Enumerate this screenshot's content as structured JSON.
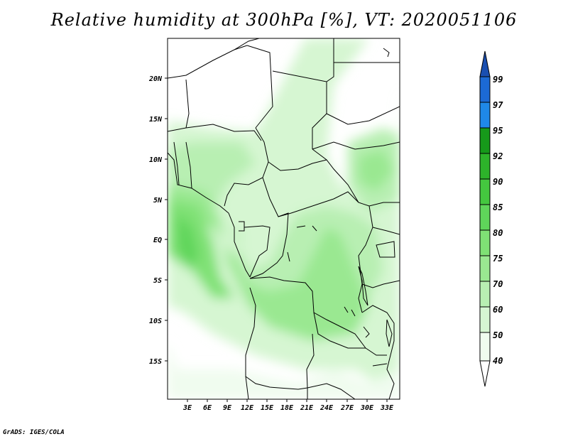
{
  "title": "Relative humidity at 300hPa [%], VT: 2020051106",
  "credit": "GrADS: IGES/COLA",
  "colors": {
    "rh40": "#f0fcef",
    "rh50": "#d6f6d2",
    "rh60": "#b8efb2",
    "rh70": "#9ae891",
    "rh75": "#7fe175",
    "rh80": "#5fd55a",
    "rh85": "#44c73f",
    "rh90": "#2db32a",
    "rh92": "#16991a",
    "rh95": "#1f88e8",
    "rh97": "#1c6ad4",
    "rh99": "#1a4fb0"
  },
  "map": {
    "lat_labels": [
      "20N",
      "15N",
      "10N",
      "5N",
      "EQ",
      "5S",
      "10S",
      "15S"
    ],
    "lon_labels": [
      "3E",
      "6E",
      "9E",
      "12E",
      "15E",
      "18E",
      "21E",
      "24E",
      "27E",
      "30E",
      "33E"
    ]
  },
  "colorbar": {
    "labels": [
      "40",
      "50",
      "60",
      "70",
      "75",
      "80",
      "85",
      "90",
      "92",
      "95",
      "97",
      "99"
    ]
  },
  "chart_data": {
    "type": "heatmap",
    "title": "Relative humidity at 300hPa [%], VT: 2020051106",
    "variable": "Relative humidity at 300hPa",
    "units": "%",
    "valid_time": "2020051106",
    "lon_range": [
      0,
      35
    ],
    "lat_range": [
      -20,
      25
    ],
    "contour_levels": [
      40,
      50,
      60,
      70,
      75,
      80,
      85,
      90,
      92,
      95,
      97,
      99
    ]
  }
}
